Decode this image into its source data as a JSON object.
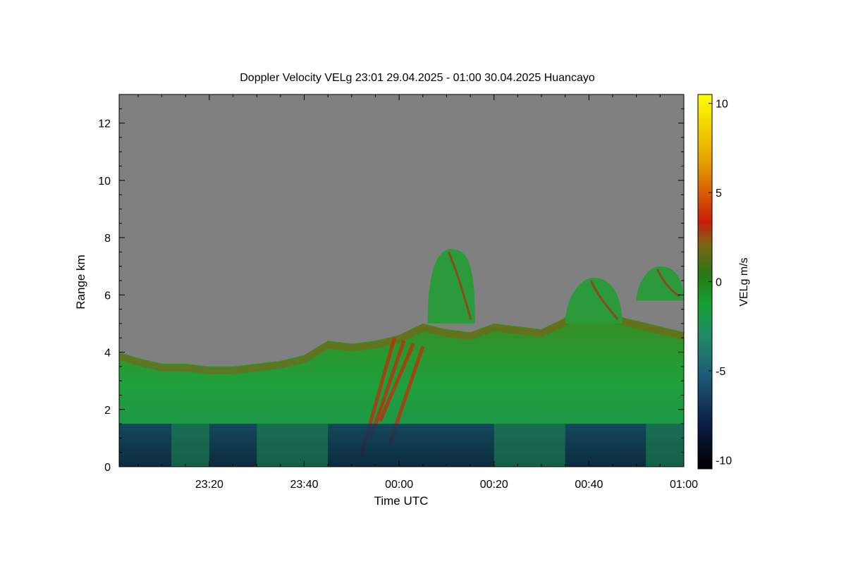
{
  "chart_data": {
    "type": "heatmap",
    "title": "Doppler Velocity VELg   23:01 29.04.2025 - 01:00 30.04.2025 Huancayo",
    "xlabel": "Time UTC",
    "ylabel": "Range km",
    "xlim": [
      "23:01",
      "01:00"
    ],
    "ylim": [
      0,
      13
    ],
    "x_ticks": [
      "23:20",
      "23:40",
      "00:00",
      "00:20",
      "00:40",
      "01:00"
    ],
    "y_ticks": [
      "0",
      "2",
      "4",
      "6",
      "8",
      "10",
      "12"
    ],
    "colorbar": {
      "label": "VELg m/s",
      "range": [
        -10.5,
        10.5
      ],
      "ticks": [
        "10",
        "5",
        "0",
        "-5",
        "-10"
      ],
      "colormap": [
        "#000000",
        "#0a1e46",
        "#1e5a78",
        "#1e8c64",
        "#14a032",
        "#287814",
        "#7d6414",
        "#c81e0a",
        "#e6a000",
        "#ffff00"
      ]
    },
    "fill_color_no_data": "#808080",
    "cloud_top_profile": {
      "time": [
        "23:01",
        "23:05",
        "23:10",
        "23:15",
        "23:20",
        "23:25",
        "23:30",
        "23:35",
        "23:40",
        "23:45",
        "23:50",
        "23:55",
        "00:00",
        "00:05",
        "00:10",
        "00:15",
        "00:20",
        "00:25",
        "00:30",
        "00:35",
        "00:40",
        "00:45",
        "00:50",
        "00:55",
        "01:00"
      ],
      "top_km": [
        4.0,
        3.8,
        3.6,
        3.6,
        3.5,
        3.5,
        3.6,
        3.7,
        3.9,
        4.4,
        4.3,
        4.4,
        4.6,
        5.0,
        4.8,
        4.7,
        5.0,
        4.9,
        4.8,
        5.2,
        5.6,
        5.3,
        5.1,
        4.9,
        4.7
      ]
    },
    "elevated_cells": [
      {
        "time_start": "00:06",
        "time_end": "00:16",
        "base_km": 5.0,
        "top_km": 7.6
      },
      {
        "time_start": "00:35",
        "time_end": "00:47",
        "base_km": 5.0,
        "top_km": 6.6
      },
      {
        "time_start": "00:50",
        "time_end": "01:00",
        "base_km": 5.8,
        "top_km": 7.0
      }
    ],
    "low_layer": {
      "time_start": "23:01",
      "time_end": "01:00",
      "top_km": 1.5,
      "velocity_m_s": -8
    }
  }
}
